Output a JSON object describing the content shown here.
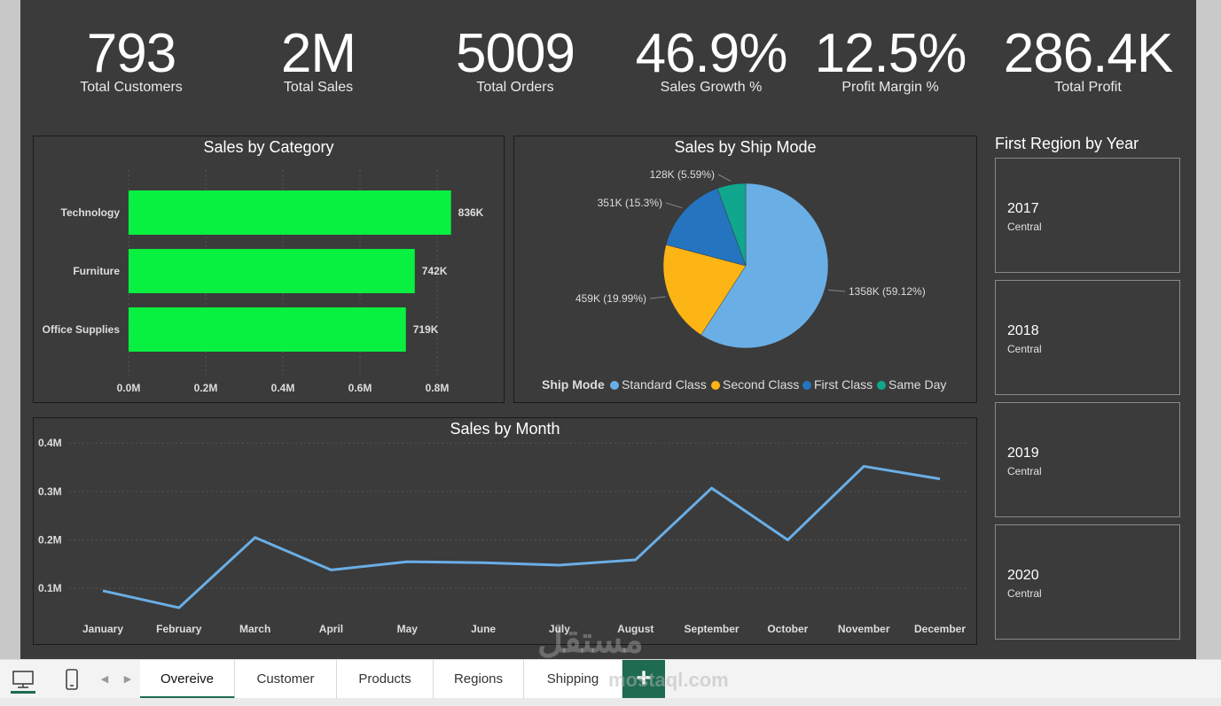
{
  "kpis": [
    {
      "value": "793",
      "label": "Total Customers"
    },
    {
      "value": "2M",
      "label": "Total Sales"
    },
    {
      "value": "5009",
      "label": "Total Orders"
    },
    {
      "value": "46.9%",
      "label": "Sales Growth %"
    },
    {
      "value": "12.5%",
      "label": "Profit Margin %"
    },
    {
      "value": "286.4K",
      "label": "Total Profit"
    }
  ],
  "chart_data": [
    {
      "type": "bar",
      "orientation": "horizontal",
      "title": "Sales by Category",
      "categories": [
        "Technology",
        "Furniture",
        "Office Supplies"
      ],
      "values": [
        836,
        742,
        719
      ],
      "data_labels": [
        "836K",
        "742K",
        "719K"
      ],
      "xticks": [
        "0.0M",
        "0.2M",
        "0.4M",
        "0.6M",
        "0.8M"
      ],
      "xlim": [
        0,
        0.8
      ],
      "grid": true,
      "color": "#08f040"
    },
    {
      "type": "pie",
      "title": "Sales by Ship Mode",
      "legend_title": "Ship Mode",
      "legend_position": "bottom",
      "slices": [
        {
          "name": "Standard Class",
          "value": 59.12,
          "label": "1358K (59.12%)",
          "color": "#6aaee6"
        },
        {
          "name": "Second Class",
          "value": 19.99,
          "label": "459K (19.99%)",
          "color": "#fdb515"
        },
        {
          "name": "First Class",
          "value": 15.3,
          "label": "351K (15.3%)",
          "color": "#2474c0"
        },
        {
          "name": "Same Day",
          "value": 5.59,
          "label": "128K (5.59%)",
          "color": "#10a78e"
        }
      ]
    },
    {
      "type": "line",
      "title": "Sales by Month",
      "x": [
        "January",
        "February",
        "March",
        "April",
        "May",
        "June",
        "July",
        "August",
        "September",
        "October",
        "November",
        "December"
      ],
      "values": [
        0.095,
        0.06,
        0.205,
        0.138,
        0.155,
        0.153,
        0.148,
        0.159,
        0.307,
        0.2,
        0.352,
        0.326
      ],
      "yticks": [
        "0.1M",
        "0.2M",
        "0.3M",
        "0.4M"
      ],
      "ylim": [
        0.04,
        0.415
      ],
      "grid": true,
      "color": "#6aaee6"
    }
  ],
  "region_panel": {
    "title": "First Region by Year",
    "cards": [
      {
        "year": "2017",
        "region": "Central"
      },
      {
        "year": "2018",
        "region": "Central"
      },
      {
        "year": "2019",
        "region": "Central"
      },
      {
        "year": "2020",
        "region": "Central"
      }
    ]
  },
  "tabs": [
    {
      "label": "Overeive",
      "active": true
    },
    {
      "label": "Customer",
      "active": false
    },
    {
      "label": "Products",
      "active": false
    },
    {
      "label": "Regions",
      "active": false
    },
    {
      "label": "Shipping",
      "active": false
    }
  ],
  "tabbar": {
    "add_label": "+",
    "icons": [
      "desktop-icon",
      "phone-icon",
      "chevron-left-icon",
      "chevron-right-icon"
    ]
  },
  "watermark": {
    "text": "مستقل",
    "sub": "mostaql.com"
  }
}
